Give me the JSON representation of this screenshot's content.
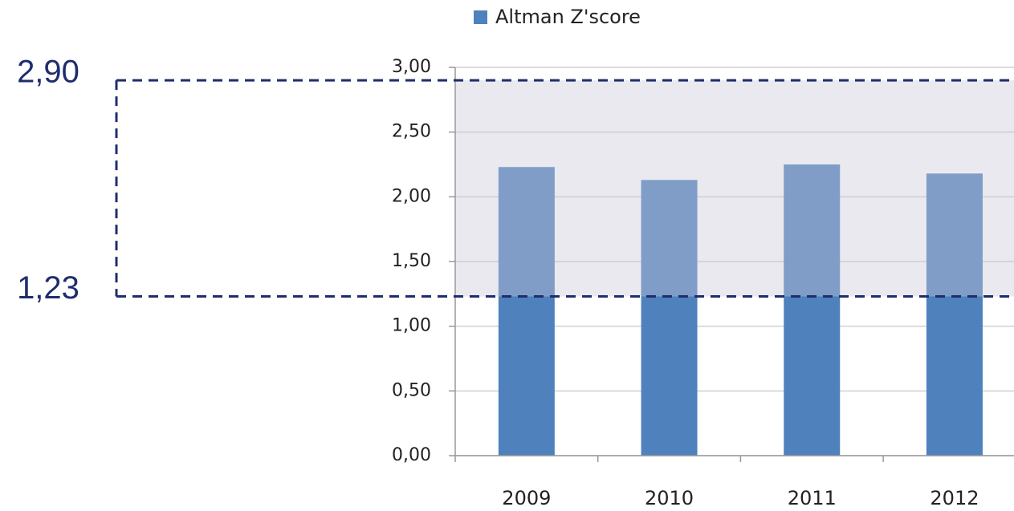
{
  "chart_data": {
    "type": "bar",
    "categories": [
      "2009",
      "2010",
      "2011",
      "2012"
    ],
    "series": [
      {
        "name": "Altman Z'score",
        "color": "#4f81bd",
        "values": [
          2.23,
          2.13,
          2.25,
          2.18
        ]
      }
    ],
    "ylim": [
      0,
      3
    ],
    "yticks": [
      {
        "value": 0,
        "label": "0,00"
      },
      {
        "value": 0.5,
        "label": "0,50"
      },
      {
        "value": 1,
        "label": "1,00"
      },
      {
        "value": 1.5,
        "label": "1,50"
      },
      {
        "value": 2,
        "label": "2,00"
      },
      {
        "value": 2.5,
        "label": "2,50"
      },
      {
        "value": 3,
        "label": "3,00"
      }
    ],
    "grid": true,
    "legend": "top",
    "reference_lines": [
      {
        "value": 2.9,
        "label": "2,90"
      },
      {
        "value": 1.23,
        "label": "1,23"
      }
    ],
    "band_color": "#c8c8d8"
  }
}
